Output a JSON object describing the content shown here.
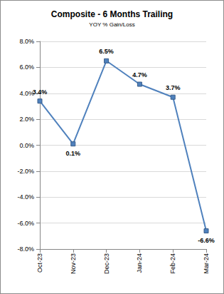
{
  "chart_data": {
    "type": "line",
    "title": "Composite - 6 Months Trailing",
    "subtitle": "YOY % Gain/Loss",
    "categories": [
      "Oct-23",
      "Nov-23",
      "Dec-23",
      "Jan-24",
      "Feb-24",
      "Mar-24"
    ],
    "values": [
      3.4,
      0.1,
      6.5,
      4.7,
      3.7,
      -6.6
    ],
    "value_labels": [
      "3.4%",
      "0.1%",
      "6.5%",
      "4.7%",
      "3.7%",
      "-6.6%"
    ],
    "color": "#4f81bd",
    "marker": "square",
    "ylim": [
      -8,
      8
    ],
    "yticks": [
      {
        "value": -8,
        "label": "-8.0%"
      },
      {
        "value": -6,
        "label": "-6.0%"
      },
      {
        "value": -4,
        "label": "-4.0%"
      },
      {
        "value": -2,
        "label": "-2.0%"
      },
      {
        "value": 0,
        "label": "0.0%"
      },
      {
        "value": 2,
        "label": "2.0%"
      },
      {
        "value": 4,
        "label": "4.0%"
      },
      {
        "value": 6,
        "label": "6.0%"
      },
      {
        "value": 8,
        "label": "8.0%"
      }
    ],
    "grid": true,
    "data_labels": true
  }
}
